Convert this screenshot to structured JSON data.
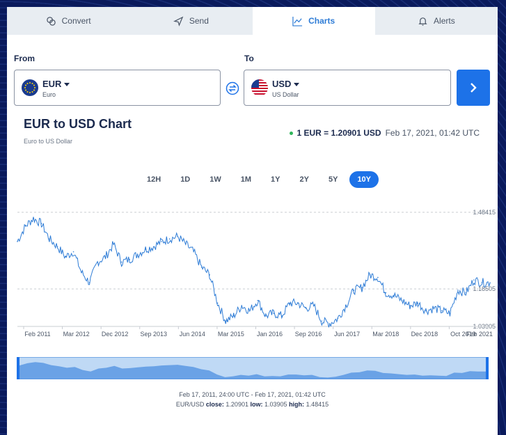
{
  "tabs": [
    {
      "label": "Convert",
      "icon": "convert-icon"
    },
    {
      "label": "Send",
      "icon": "send-icon"
    },
    {
      "label": "Charts",
      "icon": "chart-icon",
      "active": true
    },
    {
      "label": "Alerts",
      "icon": "bell-icon"
    }
  ],
  "converter": {
    "from_label": "From",
    "to_label": "To",
    "from": {
      "code": "EUR",
      "name": "Euro"
    },
    "to": {
      "code": "USD",
      "name": "US Dollar"
    }
  },
  "chart_header": {
    "title": "EUR to USD Chart",
    "subtitle": "Euro to US Dollar",
    "rate": "1 EUR = 1.20901 USD",
    "timestamp": "Feb 17, 2021, 01:42 UTC"
  },
  "ranges": [
    "12H",
    "1D",
    "1W",
    "1M",
    "1Y",
    "2Y",
    "5Y",
    "10Y"
  ],
  "active_range": "10Y",
  "colors": {
    "accent": "#1d72e8",
    "line": "#2e7cd6",
    "live_dot": "#2fb55a"
  },
  "chart_data": {
    "type": "line",
    "title": "",
    "xlabel": "",
    "ylabel": "",
    "x_ticks": [
      "Feb 2011",
      "Mar 2012",
      "Dec 2012",
      "Sep 2013",
      "Jun 2014",
      "Mar 2015",
      "Jan 2016",
      "Sep 2016",
      "Jun 2017",
      "Mar 2018",
      "Dec 2018",
      "Oct 2019",
      "Feb 2021"
    ],
    "y_ticks": [
      "1.48415",
      "1.18505",
      "1.03905"
    ],
    "ylim": [
      1.039,
      1.484
    ],
    "grid": "dashed horizontal",
    "series": [
      {
        "x": [
          "Feb 2011",
          "Apr 2011",
          "May 2011",
          "Jul 2011",
          "Sep 2011",
          "Nov 2011",
          "Jan 2012",
          "Mar 2012",
          "Jun 2012",
          "Jul 2012",
          "Sep 2012",
          "Dec 2012",
          "Feb 2013",
          "Mar 2013",
          "May 2013",
          "Jul 2013",
          "Sep 2013",
          "Nov 2013",
          "Jan 2014",
          "Mar 2014",
          "May 2014",
          "Jun 2014",
          "Aug 2014",
          "Oct 2014",
          "Dec 2014",
          "Feb 2015",
          "Mar 2015",
          "Apr 2015",
          "May 2015",
          "Jul 2015",
          "Aug 2015",
          "Oct 2015",
          "Dec 2015",
          "Jan 2016",
          "Mar 2016",
          "May 2016",
          "Jul 2016",
          "Sep 2016",
          "Nov 2016",
          "Jan 2017",
          "Mar 2017",
          "Jun 2017",
          "Sep 2017",
          "Dec 2017",
          "Feb 2018",
          "Mar 2018",
          "May 2018",
          "Aug 2018",
          "Dec 2018",
          "Mar 2019",
          "Jun 2019",
          "Oct 2019",
          "Dec 2019",
          "Mar 2020",
          "May 2020",
          "Aug 2020",
          "Oct 2020",
          "Dec 2020",
          "Jan 2021",
          "Feb 2021"
        ],
        "values": [
          1.37,
          1.43,
          1.46,
          1.44,
          1.38,
          1.35,
          1.31,
          1.33,
          1.25,
          1.21,
          1.29,
          1.31,
          1.36,
          1.29,
          1.3,
          1.32,
          1.34,
          1.35,
          1.37,
          1.38,
          1.39,
          1.36,
          1.33,
          1.27,
          1.24,
          1.13,
          1.06,
          1.08,
          1.12,
          1.1,
          1.14,
          1.08,
          1.09,
          1.08,
          1.13,
          1.13,
          1.11,
          1.12,
          1.06,
          1.05,
          1.07,
          1.12,
          1.18,
          1.19,
          1.24,
          1.23,
          1.17,
          1.16,
          1.14,
          1.12,
          1.13,
          1.1,
          1.11,
          1.1,
          1.09,
          1.18,
          1.17,
          1.22,
          1.21,
          1.209
        ]
      }
    ]
  },
  "footer": {
    "range_text": "Feb 17, 2011, 24:00 UTC - Feb 17, 2021, 01:42 UTC",
    "pair": "EUR/USD",
    "close_label": "close:",
    "close": "1.20901",
    "low_label": "low:",
    "low": "1.03905",
    "high_label": "high:",
    "high": "1.48415"
  }
}
